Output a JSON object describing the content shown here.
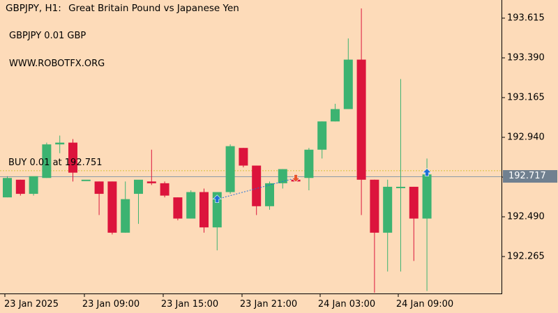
{
  "header": {
    "symbol_tf": "GBPJPY, H1:",
    "description": "Great Britain Pound vs Japanese Yen"
  },
  "info_lines": [
    "GBPJPY 0.01 GBP",
    "WWW.ROBOTFX.ORG"
  ],
  "trade_label": "BUY 0.01 at 192.751",
  "current_price": "192.717",
  "colors": {
    "background": "#fddbb9",
    "bull": "#3cb371",
    "bear": "#dc143c",
    "axis": "#000000",
    "price_label_bg": "#708090",
    "buy_arrow": "#1e6fd9",
    "sell_arrow": "#e8562a",
    "entry_line": "#d4c23a"
  },
  "chart_data": {
    "type": "candlestick",
    "y_ticks": [
      "193.615",
      "193.390",
      "193.165",
      "192.940",
      "192.715",
      "192.490",
      "192.265"
    ],
    "x_ticks": [
      "23 Jan 2025",
      "23 Jan 09:00",
      "23 Jan 15:00",
      "23 Jan 21:00",
      "24 Jan 03:00",
      "24 Jan 09:00"
    ],
    "ylim": [
      192.05,
      193.68
    ],
    "entry_price": 192.751,
    "current_price": 192.717,
    "candles": [
      {
        "o": 192.6,
        "h": 192.72,
        "l": 192.6,
        "c": 192.71
      },
      {
        "o": 192.7,
        "h": 192.7,
        "l": 192.61,
        "c": 192.62
      },
      {
        "o": 192.62,
        "h": 192.71,
        "l": 192.61,
        "c": 192.72
      },
      {
        "o": 192.71,
        "h": 192.91,
        "l": 192.71,
        "c": 192.9
      },
      {
        "o": 192.9,
        "h": 192.95,
        "l": 192.85,
        "c": 192.91
      },
      {
        "o": 192.91,
        "h": 192.93,
        "l": 192.69,
        "c": 192.74
      },
      {
        "o": 192.7,
        "h": 192.7,
        "l": 192.7,
        "c": 192.7
      },
      {
        "o": 192.69,
        "h": 192.69,
        "l": 192.5,
        "c": 192.62
      },
      {
        "o": 192.69,
        "h": 192.69,
        "l": 192.39,
        "c": 192.4
      },
      {
        "o": 192.4,
        "h": 192.69,
        "l": 192.4,
        "c": 192.59
      },
      {
        "o": 192.62,
        "h": 192.69,
        "l": 192.45,
        "c": 192.7
      },
      {
        "o": 192.69,
        "h": 192.87,
        "l": 192.67,
        "c": 192.68
      },
      {
        "o": 192.68,
        "h": 192.69,
        "l": 192.6,
        "c": 192.61
      },
      {
        "o": 192.6,
        "h": 192.6,
        "l": 192.47,
        "c": 192.48
      },
      {
        "o": 192.48,
        "h": 192.64,
        "l": 192.48,
        "c": 192.63
      },
      {
        "o": 192.63,
        "h": 192.65,
        "l": 192.4,
        "c": 192.43
      },
      {
        "o": 192.43,
        "h": 192.63,
        "l": 192.3,
        "c": 192.63
      },
      {
        "o": 192.63,
        "h": 192.9,
        "l": 192.62,
        "c": 192.89
      },
      {
        "o": 192.88,
        "h": 192.88,
        "l": 192.77,
        "c": 192.78
      },
      {
        "o": 192.78,
        "h": 192.78,
        "l": 192.5,
        "c": 192.55
      },
      {
        "o": 192.55,
        "h": 192.69,
        "l": 192.53,
        "c": 192.68
      },
      {
        "o": 192.68,
        "h": 192.76,
        "l": 192.65,
        "c": 192.76
      },
      {
        "o": 192.7,
        "h": 192.72,
        "l": 192.69,
        "c": 192.69
      },
      {
        "o": 192.71,
        "h": 192.88,
        "l": 192.64,
        "c": 192.87
      },
      {
        "o": 192.87,
        "h": 193.03,
        "l": 192.82,
        "c": 193.03
      },
      {
        "o": 193.03,
        "h": 193.13,
        "l": 193.03,
        "c": 193.1
      },
      {
        "o": 193.1,
        "h": 193.5,
        "l": 193.1,
        "c": 193.38
      },
      {
        "o": 193.38,
        "h": 193.67,
        "l": 192.5,
        "c": 192.7
      },
      {
        "o": 192.7,
        "h": 192.7,
        "l": 192.06,
        "c": 192.4
      },
      {
        "o": 192.4,
        "h": 192.7,
        "l": 192.18,
        "c": 192.66
      },
      {
        "o": 192.66,
        "h": 193.27,
        "l": 192.18,
        "c": 192.66
      },
      {
        "o": 192.66,
        "h": 192.66,
        "l": 192.24,
        "c": 192.48
      },
      {
        "o": 192.48,
        "h": 192.82,
        "l": 192.07,
        "c": 192.73
      }
    ],
    "buy_arrows_at": [
      16,
      32
    ],
    "sell_arrows_at": [
      22
    ]
  }
}
